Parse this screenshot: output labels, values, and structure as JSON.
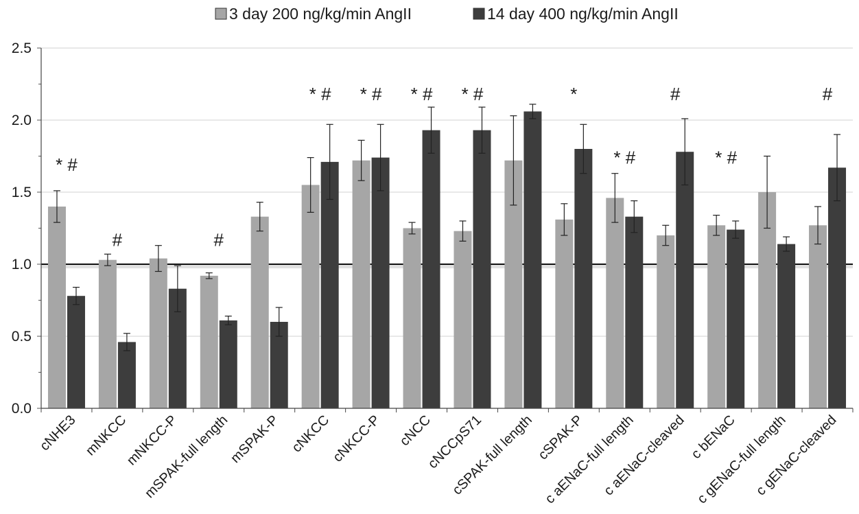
{
  "chart_data": {
    "type": "bar",
    "title": "",
    "xlabel": "",
    "ylabel": "",
    "ylim": [
      0,
      2.5
    ],
    "yticks": [
      "0.0",
      "0.5",
      "1.0",
      "1.5",
      "2.0",
      "2.5"
    ],
    "grid": true,
    "legend_position": "top-center",
    "reference_line": 1.0,
    "categories": [
      "cNHE3",
      "mNKCC",
      "mNKCC-P",
      "mSPAK-full length",
      "mSPAK-P",
      "cNKCC",
      "cNKCC-P",
      "cNCC",
      "cNCCpS71",
      "cSPAK-full length",
      "cSPAK-P",
      "c aENaC-full length",
      "c aENaC-cleaved",
      "c bENaC",
      "c gENaC-full length",
      "c gENaC-cleaved"
    ],
    "series": [
      {
        "name": "3 day 200 ng/kg/min AngII",
        "color": "#a6a6a6",
        "values": [
          1.4,
          1.03,
          1.04,
          0.92,
          1.33,
          1.55,
          1.72,
          1.25,
          1.23,
          1.72,
          1.31,
          1.46,
          1.2,
          1.27,
          1.5,
          1.27
        ],
        "errors": [
          0.11,
          0.04,
          0.09,
          0.02,
          0.1,
          0.19,
          0.14,
          0.04,
          0.07,
          0.31,
          0.11,
          0.17,
          0.07,
          0.07,
          0.25,
          0.13
        ]
      },
      {
        "name": "14 day 400 ng/kg/min AngII",
        "color": "#3d3d3d",
        "values": [
          0.78,
          0.46,
          0.83,
          0.61,
          0.6,
          1.71,
          1.74,
          1.93,
          1.93,
          2.06,
          1.8,
          1.33,
          1.78,
          1.24,
          1.14,
          1.67
        ],
        "errors": [
          0.06,
          0.06,
          0.16,
          0.03,
          0.1,
          0.26,
          0.23,
          0.16,
          0.16,
          0.05,
          0.17,
          0.11,
          0.23,
          0.06,
          0.05,
          0.23
        ]
      }
    ],
    "annotations": [
      {
        "category": "cNHE3",
        "label": "* #",
        "y": 1.69
      },
      {
        "category": "mNKCC",
        "label": "#",
        "y": 1.17
      },
      {
        "category": "mSPAK-full length",
        "label": "#",
        "y": 1.17
      },
      {
        "category": "cNKCC",
        "label": "* #",
        "y": 2.18
      },
      {
        "category": "cNKCC-P",
        "label": "* #",
        "y": 2.18
      },
      {
        "category": "cNCC",
        "label": "* #",
        "y": 2.18
      },
      {
        "category": "cNCCpS71",
        "label": "* #",
        "y": 2.18
      },
      {
        "category": "cSPAK-P",
        "label": "*",
        "y": 2.18
      },
      {
        "category": "c aENaC-full length",
        "label": "* #",
        "y": 1.74
      },
      {
        "category": "c aENaC-cleaved",
        "label": "#",
        "y": 2.18
      },
      {
        "category": "c bENaC",
        "label": "* #",
        "y": 1.74
      },
      {
        "category": "c gENaC-cleaved",
        "label": "#",
        "y": 2.18
      }
    ]
  }
}
